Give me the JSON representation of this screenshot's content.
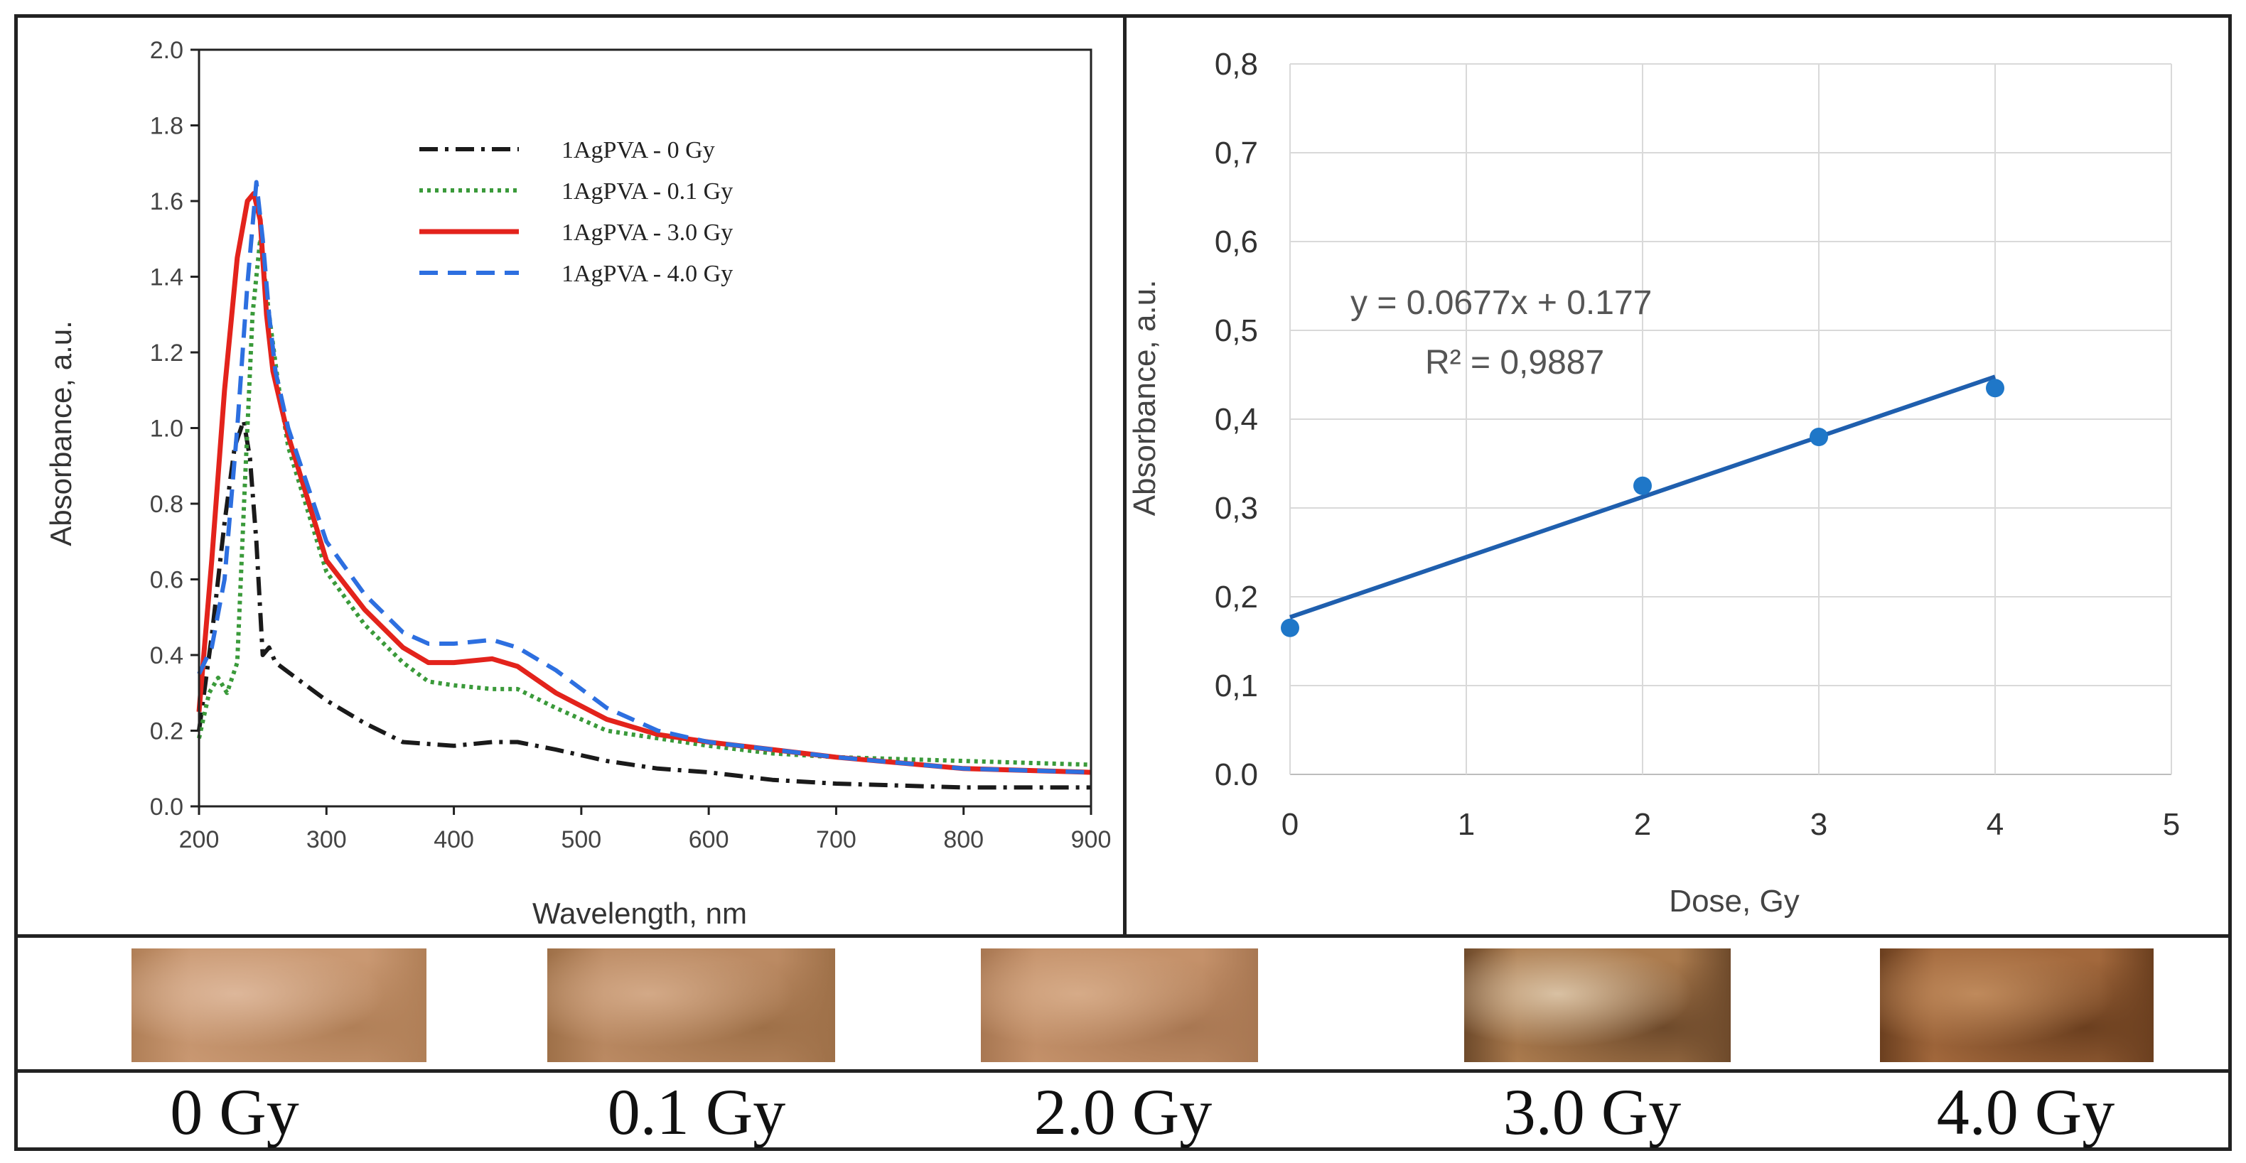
{
  "chart_data": [
    {
      "type": "line",
      "xlabel": "Wavelength, nm",
      "ylabel": "Absorbance, a.u.",
      "xlim": [
        200,
        900
      ],
      "ylim": [
        0.0,
        2.0
      ],
      "xticks": [
        200,
        300,
        400,
        500,
        600,
        700,
        800,
        900
      ],
      "yticks": [
        0.0,
        0.2,
        0.4,
        0.6,
        0.8,
        1.0,
        1.2,
        1.4,
        1.6,
        1.8,
        2.0
      ],
      "xtick_labels": [
        "200",
        "300",
        "400",
        "500",
        "600",
        "700",
        "800",
        "900"
      ],
      "ytick_labels": [
        "0.0",
        "0.2",
        "0.4",
        "0.6",
        "0.8",
        "1.0",
        "1.2",
        "1.4",
        "1.6",
        "1.8",
        "2.0"
      ],
      "legend_position": "top-right",
      "series": [
        {
          "name": "1AgPVA - 0 Gy",
          "color": "#1a1a1a",
          "dash": "dashdot",
          "x": [
            200,
            210,
            220,
            228,
            235,
            240,
            245,
            250,
            255,
            260,
            280,
            300,
            330,
            360,
            400,
            430,
            450,
            480,
            520,
            560,
            600,
            650,
            700,
            800,
            900
          ],
          "y": [
            0.2,
            0.45,
            0.75,
            0.95,
            1.02,
            0.92,
            0.7,
            0.4,
            0.42,
            0.38,
            0.33,
            0.28,
            0.22,
            0.17,
            0.16,
            0.17,
            0.17,
            0.15,
            0.12,
            0.1,
            0.09,
            0.07,
            0.06,
            0.05,
            0.05
          ]
        },
        {
          "name": "1AgPVA - 0.1 Gy",
          "color": "#3a9a3a",
          "dash": "dot",
          "x": [
            200,
            208,
            215,
            222,
            230,
            236,
            242,
            248,
            255,
            262,
            270,
            300,
            330,
            360,
            380,
            400,
            430,
            450,
            480,
            520,
            560,
            600,
            650,
            700,
            800,
            900
          ],
          "y": [
            0.18,
            0.3,
            0.34,
            0.3,
            0.38,
            0.85,
            1.3,
            1.5,
            1.3,
            1.12,
            0.95,
            0.62,
            0.48,
            0.38,
            0.33,
            0.32,
            0.31,
            0.31,
            0.26,
            0.2,
            0.18,
            0.16,
            0.14,
            0.13,
            0.12,
            0.11
          ]
        },
        {
          "name": "1AgPVA - 3.0 Gy",
          "color": "#e3231c",
          "dash": "solid",
          "x": [
            200,
            210,
            220,
            230,
            238,
            243,
            248,
            253,
            258,
            265,
            270,
            300,
            330,
            360,
            380,
            400,
            430,
            450,
            480,
            520,
            560,
            600,
            650,
            700,
            800,
            900
          ],
          "y": [
            0.25,
            0.65,
            1.1,
            1.45,
            1.6,
            1.62,
            1.55,
            1.3,
            1.15,
            1.05,
            0.98,
            0.65,
            0.52,
            0.42,
            0.38,
            0.38,
            0.39,
            0.37,
            0.3,
            0.23,
            0.19,
            0.17,
            0.15,
            0.13,
            0.1,
            0.09
          ]
        },
        {
          "name": "1AgPVA - 4.0 Gy",
          "color": "#2d6fe0",
          "dash": "dash",
          "x": [
            200,
            210,
            220,
            230,
            238,
            245,
            250,
            255,
            260,
            270,
            300,
            330,
            360,
            380,
            400,
            430,
            450,
            480,
            520,
            560,
            600,
            650,
            700,
            800,
            900
          ],
          "y": [
            0.35,
            0.42,
            0.6,
            1.0,
            1.38,
            1.65,
            1.5,
            1.3,
            1.15,
            1.0,
            0.7,
            0.56,
            0.46,
            0.43,
            0.43,
            0.44,
            0.42,
            0.36,
            0.26,
            0.2,
            0.17,
            0.15,
            0.13,
            0.1,
            0.09
          ]
        }
      ]
    },
    {
      "type": "scatter",
      "xlabel": "Dose, Gy",
      "ylabel": "Absorbance, a.u.",
      "xlim": [
        0,
        5
      ],
      "ylim": [
        0.0,
        0.8
      ],
      "xticks": [
        0,
        1,
        2,
        3,
        4,
        5
      ],
      "yticks": [
        0.0,
        0.1,
        0.2,
        0.3,
        0.4,
        0.5,
        0.6,
        0.7,
        0.8
      ],
      "xtick_labels": [
        "0",
        "1",
        "2",
        "3",
        "4",
        "5"
      ],
      "ytick_labels": [
        "0.0",
        "0,1",
        "0,2",
        "0,3",
        "0,4",
        "0,5",
        "0,6",
        "0,7",
        "0,8"
      ],
      "grid": true,
      "series": [
        {
          "name": "Absorbance",
          "color": "#1f77c8",
          "x": [
            0,
            2,
            3,
            4
          ],
          "y": [
            0.165,
            0.325,
            0.38,
            0.435
          ]
        }
      ],
      "trendline": {
        "slope": 0.0677,
        "intercept": 0.177,
        "x_range": [
          0,
          4
        ],
        "color": "#1f5fae"
      },
      "annotations": [
        "y = 0.0677x + 0.177",
        "R² = 0,9887"
      ]
    }
  ],
  "samples": [
    {
      "label": "0 Gy",
      "color_main": "#c99872",
      "color_light": "#ddb79a",
      "color_dark": "#b07f57"
    },
    {
      "label": "0.1 Gy",
      "color_main": "#bb8a63",
      "color_light": "#d3a987",
      "color_dark": "#9e7048"
    },
    {
      "label": "2.0 Gy",
      "color_main": "#c4916a",
      "color_light": "#d6ab88",
      "color_dark": "#a87752"
    },
    {
      "label": "3.0 Gy",
      "color_main": "#ab7b4e",
      "color_light": "#d9c1a3",
      "color_dark": "#6e4a2b"
    },
    {
      "label": "4.0 Gy",
      "color_main": "#a2683c",
      "color_light": "#bf8a5c",
      "color_dark": "#6b3f1f"
    }
  ]
}
